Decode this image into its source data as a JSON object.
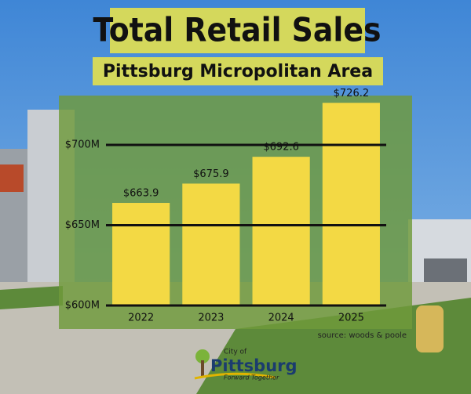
{
  "chart_data": {
    "type": "bar",
    "title": "Total Retail Sales",
    "subtitle": "Pittsburg Micropolitan Area",
    "categories": [
      "2022",
      "2023",
      "2024",
      "2025"
    ],
    "values": [
      663.9,
      675.9,
      692.6,
      726.2
    ],
    "value_labels": [
      "$663.9",
      "$675.9",
      "$692.6",
      "$726.2"
    ],
    "color": "#f3d944",
    "ylim": [
      600,
      730
    ],
    "yticks": [
      {
        "value": 600,
        "label": "$600M"
      },
      {
        "value": 650,
        "label": "$650M"
      },
      {
        "value": 700,
        "label": "$700M"
      }
    ],
    "grid": true,
    "source": "source: woods & poole"
  },
  "logo": {
    "line1": "City of",
    "name": "Pittsburg",
    "tagline": "Forward Together"
  }
}
